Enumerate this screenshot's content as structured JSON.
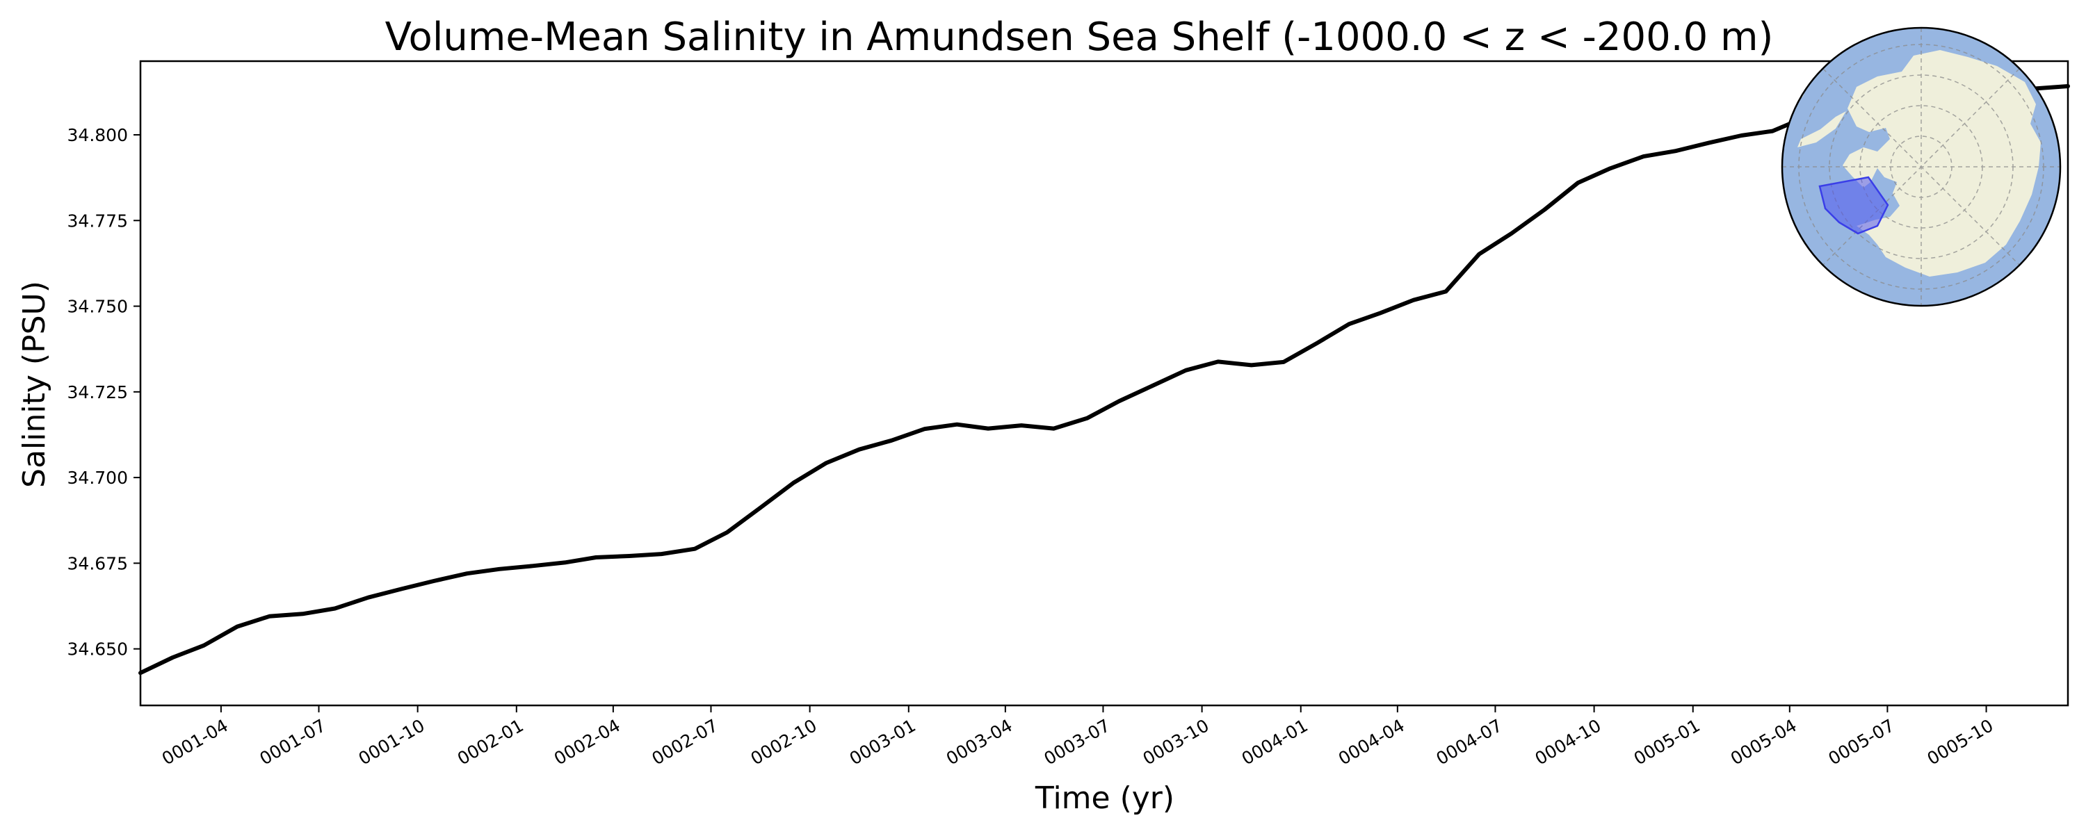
{
  "chart_data": {
    "type": "line",
    "title": "Volume-Mean Salinity in Amundsen Sea Shelf (-1000.0 < z < -200.0 m)",
    "xlabel": "Time (yr)",
    "ylabel": "Salinity (PSU)",
    "x_tick_labels": [
      "0001-04",
      "0001-07",
      "0001-10",
      "0002-01",
      "0002-04",
      "0002-07",
      "0002-10",
      "0003-01",
      "0003-04",
      "0003-07",
      "0003-10",
      "0004-01",
      "0004-04",
      "0004-07",
      "0004-10",
      "0005-01",
      "0005-04",
      "0005-07",
      "0005-10"
    ],
    "y_ticks": [
      34.65,
      34.675,
      34.7,
      34.725,
      34.75,
      34.775,
      34.8
    ],
    "y_tick_labels": [
      "34.650",
      "34.675",
      "34.700",
      "34.725",
      "34.750",
      "34.775",
      "34.800"
    ],
    "ylim": [
      34.6335,
      34.8215
    ],
    "xlim": [
      "0001-01-16",
      "0005-12-16"
    ],
    "grid": false,
    "line_color": "#000000",
    "series": [
      {
        "x": [
          "0001-01-16",
          "0001-02-15",
          "0001-03-16",
          "0001-04-16",
          "0001-05-16",
          "0001-06-16",
          "0001-07-16",
          "0001-08-16",
          "0001-09-16",
          "0001-10-16",
          "0001-11-16",
          "0001-12-16",
          "0002-01-16",
          "0002-02-15",
          "0002-03-16",
          "0002-04-16",
          "0002-05-16",
          "0002-06-16",
          "0002-07-16",
          "0002-08-16",
          "0002-09-16",
          "0002-10-16",
          "0002-11-16",
          "0002-12-16",
          "0003-01-16",
          "0003-02-15",
          "0003-03-16",
          "0003-04-16",
          "0003-05-16",
          "0003-06-16",
          "0003-07-16",
          "0003-08-16",
          "0003-09-16",
          "0003-10-16",
          "0003-11-16",
          "0003-12-16",
          "0004-01-16",
          "0004-02-15",
          "0004-03-16",
          "0004-04-16",
          "0004-05-16",
          "0004-06-16",
          "0004-07-16",
          "0004-08-16",
          "0004-09-16",
          "0004-10-16",
          "0004-11-16",
          "0004-12-16",
          "0005-01-16",
          "0005-02-15",
          "0005-03-16",
          "0005-04-16",
          "0005-05-16",
          "0005-06-16",
          "0005-07-16",
          "0005-08-16",
          "0005-09-16",
          "0005-10-16",
          "0005-11-16",
          "0005-12-16"
        ],
        "values": [
          34.643,
          34.6475,
          34.651,
          34.6565,
          34.6595,
          34.6602,
          34.6618,
          34.665,
          34.6675,
          34.6698,
          34.672,
          34.6733,
          34.6742,
          34.6752,
          34.6767,
          34.6771,
          34.6777,
          34.6792,
          34.684,
          34.6912,
          34.6985,
          34.7042,
          34.7082,
          34.7108,
          34.7142,
          34.7155,
          34.7143,
          34.7152,
          34.7143,
          34.7173,
          34.7223,
          34.7268,
          34.7313,
          34.7338,
          34.7328,
          34.7337,
          34.7392,
          34.7448,
          34.748,
          34.7518,
          34.7543,
          34.7652,
          34.7712,
          34.7782,
          34.786,
          34.7902,
          34.7937,
          34.7953,
          34.7977,
          34.7998,
          34.8011,
          34.8052,
          34.8085,
          34.8102,
          34.8112,
          34.8122,
          34.8127,
          34.8132,
          34.8135,
          34.8142
        ]
      }
    ]
  },
  "inset_map": {
    "ocean_color": "#97b6e1",
    "land_color": "#efefdb",
    "region_color": "#4a4ef2"
  }
}
